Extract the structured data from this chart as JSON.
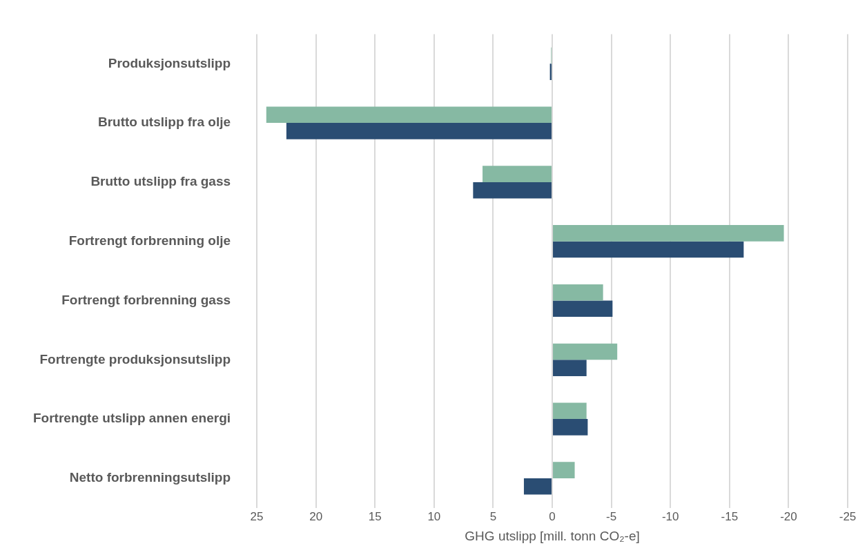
{
  "chart_data": {
    "type": "bar",
    "orientation": "horizontal",
    "xlabel": "GHG utslipp [mill. tonn CO₂-e]",
    "categories": [
      "Produksjonsutslipp",
      "Brutto utslipp fra olje",
      "Brutto utslipp fra gass",
      "Fortrengt forbrenning olje",
      "Fortrengt forbrenning gass",
      "Fortrengte produksjonsutslipp",
      "Fortrengte utslipp annen energi",
      "Netto forbrenningsutslipp"
    ],
    "series": [
      {
        "color": "#86b9a3",
        "values": [
          0.1,
          24.2,
          5.9,
          -19.6,
          -4.3,
          -5.5,
          -2.9,
          -1.9
        ]
      },
      {
        "color": "#2a4d73",
        "values": [
          0.2,
          22.5,
          6.7,
          -16.2,
          -5.1,
          -2.9,
          -3.0,
          2.4
        ]
      }
    ],
    "xlim": [
      25,
      -25
    ],
    "xticks": [
      25,
      20,
      15,
      10,
      5,
      0,
      -5,
      -10,
      -15,
      -20,
      -25
    ],
    "grid": "x"
  }
}
